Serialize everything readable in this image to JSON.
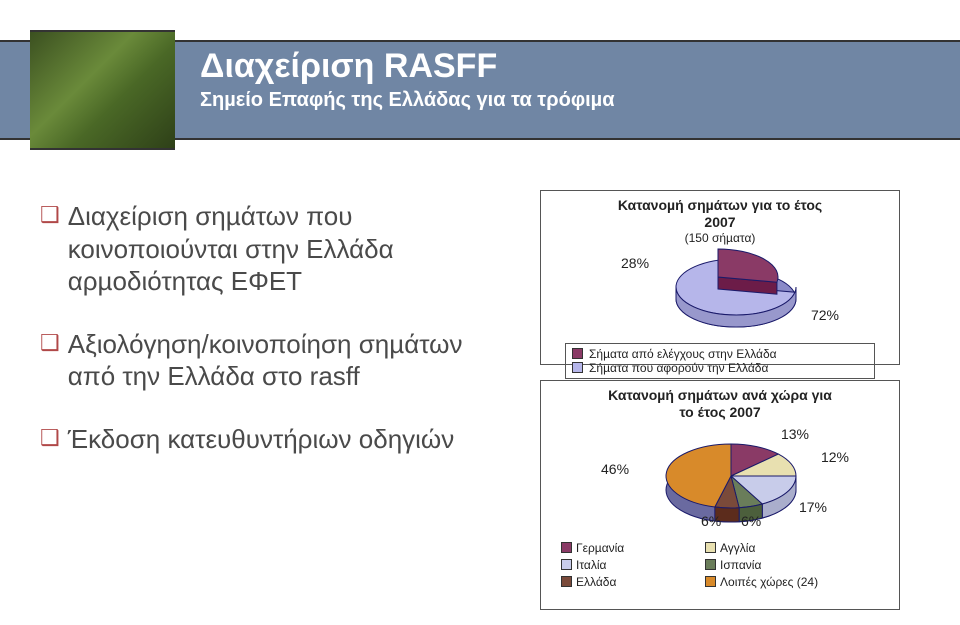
{
  "header": {
    "title": "Διαχείριση RASFF",
    "subtitle": "Σηµείο Επαφής της Ελλάδας για τα τρόφιµα"
  },
  "bullets": [
    "Διαχείριση σηµάτων που κοινοποιούνται στην Ελλάδα αρµοδιότητας ΕΦΕΤ",
    "Αξιολόγηση/κοινοποίηση σηµάτων από την Ελλάδα στο rasff",
    "Έκδοση κατευθυντήριων οδηγιών"
  ],
  "chart1": {
    "type": "pie",
    "title_line1": "Κατανοµή σηµάτων για το έτος",
    "title_line2": "2007",
    "subtitle": "(150 σήµατα)",
    "slices": [
      {
        "label": "28%",
        "value": 28,
        "color": "#8a3a66"
      },
      {
        "label": "72%",
        "value": 72,
        "color": "#b6b6ea"
      }
    ],
    "outline_color": "#1a1a6a",
    "legend": [
      {
        "swatch": "#8a3a66",
        "text": "Σήµατα από ελέγχους στην Ελλάδα"
      },
      {
        "swatch": "#b6b6ea",
        "text": "Σήµατα που αφορούν την Ελλάδα"
      }
    ]
  },
  "chart2": {
    "type": "pie",
    "title_line1": "Κατανοµή σηµάτων ανά χώρα για",
    "title_line2": "το έτος 2007",
    "slices": [
      {
        "label": "13%",
        "value": 13,
        "color": "#8a3a66"
      },
      {
        "label": "12%",
        "value": 12,
        "color": "#e8e0b0"
      },
      {
        "label": "17%",
        "value": 17,
        "color": "#c8ccea"
      },
      {
        "label": "6%",
        "value": 6,
        "color": "#6a7d5a"
      },
      {
        "label": "6%",
        "value": 6,
        "color": "#7a4a3a"
      },
      {
        "label": "46%",
        "value": 46,
        "color": "#d88a2a"
      }
    ],
    "outline_color": "#1a1a6a",
    "legend": [
      [
        {
          "swatch": "#8a3a66",
          "text": "Γερµανία"
        },
        {
          "swatch": "#e8e0b0",
          "text": "Αγγλία"
        }
      ],
      [
        {
          "swatch": "#c8ccea",
          "text": "Ιταλία"
        },
        {
          "swatch": "#6a7d5a",
          "text": "Ισπανία"
        }
      ],
      [
        {
          "swatch": "#7a4a3a",
          "text": "Ελλάδα"
        },
        {
          "swatch": "#d88a2a",
          "text": "Λοιπές χώρες (24)"
        }
      ]
    ]
  }
}
